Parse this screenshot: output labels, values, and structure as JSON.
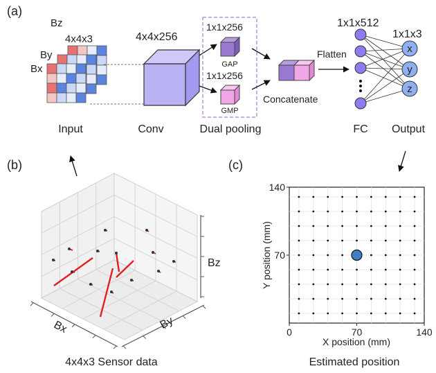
{
  "panel_labels": {
    "a": "(a)",
    "b": "(b)",
    "c": "(c)"
  },
  "pipeline": {
    "input": {
      "layer_labels": [
        "Bz",
        "By",
        "Bx"
      ],
      "size_label": "4x4x3",
      "caption": "Input",
      "colors": {
        "red_dark": "#e57373",
        "red_light": "#f6c6c6",
        "blue_dark": "#5b84e0",
        "blue_light": "#c9d9f7"
      }
    },
    "conv": {
      "size_label": "4x4x256",
      "caption": "Conv",
      "color": "#b9b2f3"
    },
    "dual_pooling": {
      "gap_size": "1x1x256",
      "gap_label": "GAP",
      "gap_color": "#9b79d0",
      "gmp_size": "1x1x256",
      "gmp_label": "GMP",
      "gmp_color": "#f1a6e8",
      "caption": "Dual pooling",
      "border_color": "#b07ad6"
    },
    "concatenate": {
      "label": "Concatenate"
    },
    "flatten": {
      "label": "Flatten"
    },
    "fc": {
      "size_label": "1x1x512",
      "caption": "FC",
      "node_color": "#8c7cf0"
    },
    "output": {
      "size_label": "1x1x3",
      "caption": "Output",
      "nodes": [
        "x",
        "y",
        "z"
      ],
      "node_color": "#8fb0f0"
    }
  },
  "sensor_plot": {
    "axis_labels": {
      "x": "Bx",
      "y": "By",
      "z": "Bz"
    },
    "caption": "4x4x3 Sensor data",
    "vector_color": "#e02020"
  },
  "chart_data": {
    "type": "scatter",
    "title": "",
    "xlabel": "X position (mm)",
    "ylabel": "Y position (mm)",
    "xlim": [
      0,
      140
    ],
    "ylim": [
      0,
      140
    ],
    "x_ticks": [
      "0",
      "70",
      "140"
    ],
    "y_ticks": [
      "70",
      "140"
    ],
    "grid": true,
    "series": [
      {
        "marker": "grid-points",
        "x": [
          10,
          25,
          40,
          55,
          70,
          85,
          100,
          115,
          130
        ],
        "y": [
          10,
          25,
          40,
          55,
          70,
          85,
          100,
          115,
          130
        ]
      },
      {
        "marker": "estimated-position",
        "color": "#3f7ec4",
        "x": [
          70
        ],
        "y": [
          70
        ]
      }
    ],
    "caption": "Estimated position"
  }
}
